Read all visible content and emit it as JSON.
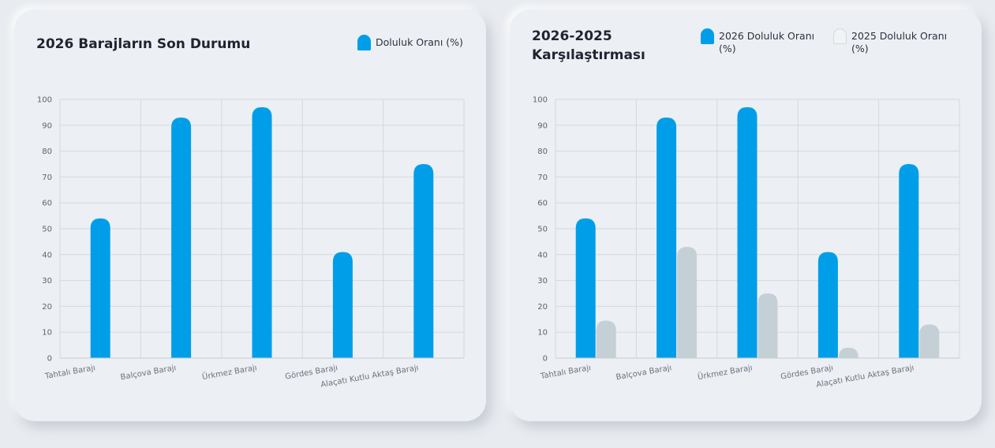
{
  "colors": {
    "background": "#e8ebf0",
    "card": "#eceff3",
    "series_2026": "#009ee8",
    "series_2025": "#c5d0d6",
    "grid": "#d5d9df"
  },
  "cards": [
    {
      "title": "2026 Barajların Son Durumu",
      "legend": [
        {
          "label": "Doluluk Oranı (%)",
          "color": "#009ee8",
          "swatch": "blue"
        }
      ]
    },
    {
      "title": "2026-2025 Karşılaştırması",
      "legend": [
        {
          "label": "2026 Doluluk Oranı (%)",
          "color": "#009ee8",
          "swatch": "blue"
        },
        {
          "label": "2025 Doluluk Oranı (%)",
          "color": "#f1f3f5",
          "swatch": "gray"
        }
      ]
    }
  ],
  "chart_data": [
    {
      "type": "bar",
      "title": "2026 Barajların Son Durumu",
      "categories": [
        "Tahtalı Barajı",
        "Balçova Barajı",
        "Ürkmez Barajı",
        "Gördes Barajı",
        "Alaçatı Kutlu Aktaş Barajı"
      ],
      "series": [
        {
          "name": "Doluluk Oranı (%)",
          "color": "#009ee8",
          "values": [
            54,
            93,
            97,
            41,
            75
          ]
        }
      ],
      "ylim": [
        0,
        100
      ],
      "yticks": [
        0,
        10,
        20,
        30,
        40,
        50,
        60,
        70,
        80,
        90,
        100
      ],
      "grid": true,
      "legend": "top-right"
    },
    {
      "type": "bar",
      "title": "2026-2025 Karşılaştırması",
      "categories": [
        "Tahtalı Barajı",
        "Balçova Barajı",
        "Ürkmez Barajı",
        "Gördes Barajı",
        "Alaçatı Kutlu Aktaş Barajı"
      ],
      "series": [
        {
          "name": "2026 Doluluk Oranı (%)",
          "color": "#009ee8",
          "values": [
            54,
            93,
            97,
            41,
            75
          ]
        },
        {
          "name": "2025 Doluluk Oranı (%)",
          "color": "#c5d0d6",
          "values": [
            14.5,
            43,
            25,
            4,
            13
          ]
        }
      ],
      "ylim": [
        0,
        100
      ],
      "yticks": [
        0,
        10,
        20,
        30,
        40,
        50,
        60,
        70,
        80,
        90,
        100
      ],
      "grid": true,
      "legend": "top-right"
    }
  ]
}
